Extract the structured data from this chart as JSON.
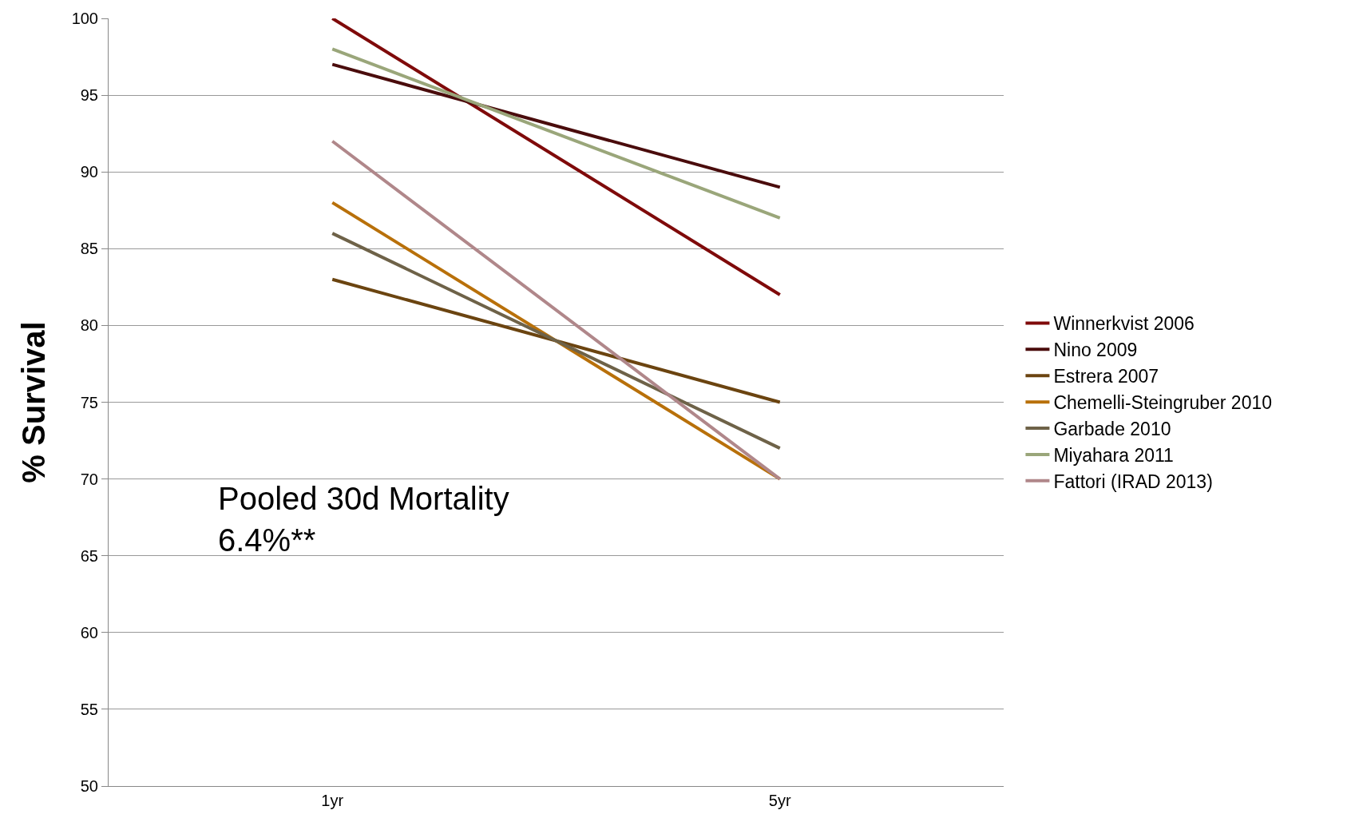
{
  "chart_data": {
    "type": "line",
    "ylabel": "% Survival",
    "categories": [
      "1yr",
      "5yr"
    ],
    "series": [
      {
        "name": "Winnerkvist 2006",
        "color": "#7f0a0a",
        "values": [
          100,
          82
        ]
      },
      {
        "name": "Nino 2009",
        "color": "#4a0c0c",
        "values": [
          97,
          89
        ]
      },
      {
        "name": "Estrera 2007",
        "color": "#6b4410",
        "values": [
          83,
          75
        ]
      },
      {
        "name": "Chemelli-Steingruber 2010",
        "color": "#b8700a",
        "values": [
          88,
          70
        ]
      },
      {
        "name": "Garbade 2010",
        "color": "#6e6248",
        "values": [
          86,
          72
        ]
      },
      {
        "name": "Miyahara 2011",
        "color": "#9aa67a",
        "values": [
          98,
          87
        ]
      },
      {
        "name": "Fattori (IRAD 2013)",
        "color": "#b0878a",
        "values": [
          92,
          70
        ]
      }
    ],
    "ylim": [
      50,
      100
    ],
    "yticks": [
      50,
      55,
      60,
      65,
      70,
      75,
      80,
      85,
      90,
      95,
      100
    ],
    "grid": "y",
    "legend": "right",
    "marker": "none",
    "annotations": [
      "Pooled 30d Mortality\n6.4%**"
    ]
  }
}
